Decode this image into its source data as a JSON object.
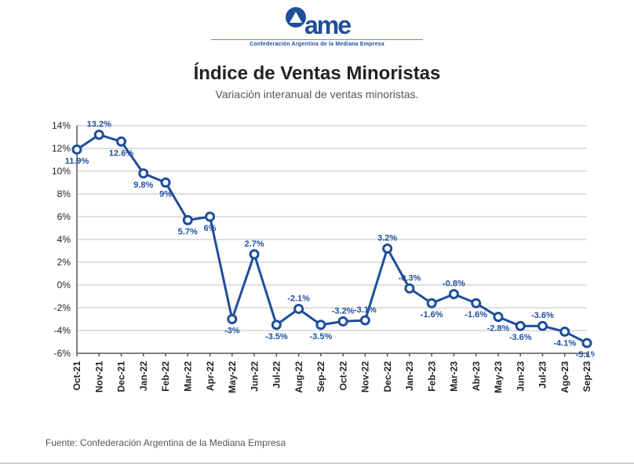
{
  "logo": {
    "text": "ame",
    "subtitle": "Confederación Argentina de la Mediana Empresa",
    "color": "#1f4e9b"
  },
  "title": "Índice de Ventas Minoristas",
  "subtitle": "Variación interanual de ventas minoristas.",
  "source": "Fuente: Confederación Argentina de la Mediana Empresa",
  "chart": {
    "type": "line",
    "background_color": "#ffffff",
    "grid_color": "#bfbfbf",
    "axis_color": "#555555",
    "series_color": "#1f4e9b",
    "marker_fill": "#ffffff",
    "marker_stroke": "#1f4e9b",
    "marker_radius": 5,
    "line_width": 3,
    "label_color": "#1f4e9b",
    "label_fontsize": 11,
    "tick_fontsize": 12,
    "ylim": [
      -6,
      14
    ],
    "ytick_step": 2,
    "ytick_suffix": "%",
    "categories": [
      "Oct-21",
      "Nov-21",
      "Dec-21",
      "Jan-22",
      "Feb-22",
      "Mar-22",
      "Apr-22",
      "May-22",
      "Jun-22",
      "Jul-22",
      "Aug-22",
      "Sep-22",
      "Oct-22",
      "Nov-22",
      "Dec-22",
      "Jan-23",
      "Feb-23",
      "Mar-23",
      "Abr-23",
      "May-23",
      "Jun-23",
      "Jul-23",
      "Ago-23",
      "Sep-23"
    ],
    "values": [
      11.9,
      13.2,
      12.6,
      9.8,
      9.0,
      5.7,
      6.0,
      -3.0,
      2.7,
      -3.5,
      -2.1,
      -3.5,
      -3.2,
      -3.1,
      3.2,
      -0.3,
      -1.6,
      -0.8,
      -1.6,
      -2.8,
      -3.6,
      -3.6,
      -4.1,
      -5.1
    ],
    "labels": [
      "11.9%",
      "13.2%",
      "12.6%",
      "9.8%",
      "9%",
      "5.7%",
      "6%",
      "-3%",
      "2.7%",
      "-3.5%",
      "-2.1%",
      "-3.5%",
      "-3.2%",
      "-3.1%",
      "3.2%",
      "-0.3%",
      "-1.6%",
      "-0.8%",
      "-1.6%",
      "-2.8%",
      "-3.6%",
      "-3.6%",
      "-4.1%",
      "-5.1%"
    ],
    "label_pos": [
      "below",
      "above",
      "below",
      "below",
      "below",
      "below",
      "below",
      "below",
      "above",
      "below",
      "above",
      "below",
      "above",
      "above",
      "above",
      "above",
      "below",
      "above",
      "below",
      "below",
      "below",
      "above",
      "below",
      "below"
    ]
  }
}
